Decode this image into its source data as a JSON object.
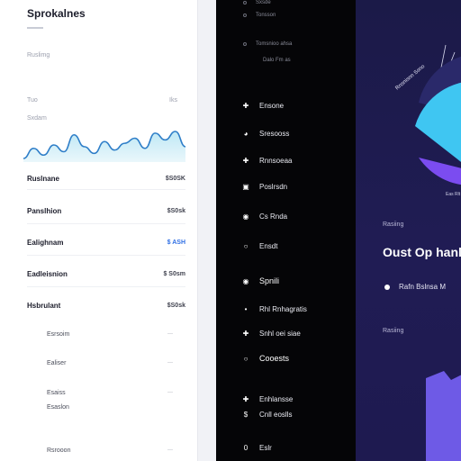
{
  "left": {
    "title": "Sprokalnes",
    "muted": [
      "Ruslimg",
      "Tuo",
      "Sxdam"
    ],
    "muted_values": [
      "Iks"
    ],
    "rows": [
      {
        "label": "Ruslnane",
        "value": "$S0SK"
      },
      {
        "label": "Panslhion",
        "value": "$S0sk"
      },
      {
        "label": "Ealighnam",
        "value": "$ ASH",
        "accent": true
      },
      {
        "label": "Eadleisnion",
        "value": "$ S0sm"
      },
      {
        "label": "Hsbrulant",
        "value": "$S0sk"
      }
    ],
    "subrows": [
      {
        "label": "Esrsoim"
      },
      {
        "label": "Ealiser"
      },
      {
        "label": "Esaiss",
        "label2": "Esaslon"
      },
      {
        "label": "Rsrooon"
      }
    ],
    "accent_color": "#2f6fe4"
  },
  "chart_data": {
    "type": "area",
    "values": [
      12,
      18,
      14,
      20,
      16,
      26,
      19,
      15,
      22,
      17,
      21,
      24,
      18,
      27,
      23,
      28,
      19
    ]
  },
  "middle": {
    "top_items": [
      "Sxsde",
      "Tonsson",
      "Tomsnioo ahsa",
      "Dalo Fm as"
    ],
    "menu": [
      {
        "icon": "plus-icon",
        "glyph": "✚",
        "label": "Ensone"
      },
      {
        "icon": "pie-icon",
        "glyph": "◕",
        "label": "Sresooss"
      },
      {
        "icon": "plus-icon",
        "glyph": "✚",
        "label": "Rnnsoeaa"
      },
      {
        "icon": "square-icon",
        "glyph": "▣",
        "label": "Poslrsdn"
      },
      {
        "icon": "target-icon",
        "glyph": "◉",
        "label": "Cs Rnda"
      },
      {
        "icon": "circle-icon",
        "glyph": "○",
        "label": "Ensdt"
      },
      {
        "icon": "target-icon",
        "glyph": "◉",
        "label": "Spnili"
      },
      {
        "icon": "dot-icon",
        "glyph": "•",
        "label": "Rhl Rnhagratis"
      },
      {
        "icon": "plus-icon",
        "glyph": "✚",
        "label": "Snhl oei siae"
      },
      {
        "icon": "circle-icon",
        "glyph": "○",
        "label": "Cooests"
      },
      {
        "icon": "plus-icon",
        "glyph": "✚",
        "label": "Enhlansse"
      },
      {
        "icon": "s-icon",
        "glyph": "$",
        "label": "Cnll eoslls"
      },
      {
        "icon": "zero-icon",
        "glyph": "0",
        "label": "Eslr"
      }
    ]
  },
  "right": {
    "label_top": "Rasiing",
    "heading": "Oust Op hanl",
    "bullet": "Rafn Bslnsa M",
    "label_bottom": "Rasiing",
    "radial_label": "Eas Rlt",
    "colors": {
      "cyan": "#3fc6f2",
      "violet": "#7b4cf0",
      "lavender": "#6e5ae6"
    }
  }
}
